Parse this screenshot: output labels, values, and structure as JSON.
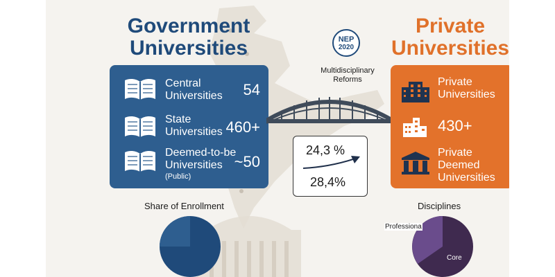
{
  "government": {
    "heading": "Government Universities",
    "color": "#1f4a7a",
    "panel_color": "#2e5e8f",
    "rows": [
      {
        "label": "Central Universities",
        "value": "54",
        "icon": "book-icon"
      },
      {
        "label": "State Universities",
        "value": "460+",
        "icon": "book-icon"
      },
      {
        "label": "Deemed-to-be Universities",
        "sublabel": "(Public)",
        "value": "~50",
        "icon": "book-icon"
      }
    ]
  },
  "private": {
    "heading": "Private Universities",
    "color": "#e0712a",
    "panel_color": "#e3722b",
    "rows": [
      {
        "label": "Private Universities",
        "icon": "office-building-icon"
      },
      {
        "value": "430+",
        "icon": "factory-building-icon"
      },
      {
        "label": "Private Deemed Universities",
        "icon": "institution-icon"
      }
    ]
  },
  "center": {
    "badge_line1": "NEP",
    "badge_line2": "2020",
    "reforms": "Multidisciplinary Reforms",
    "stat_top": "24,3 %",
    "stat_bottom": "28,4%"
  },
  "enrollment": {
    "title": "Share of Enrollment",
    "colors": [
      "#2e5e8f",
      "#1f4a7a"
    ]
  },
  "disciplines": {
    "title": "Disciplines",
    "label_professional": "Professiona",
    "label_core": "Core",
    "colors": [
      "#6a4c8c",
      "#3f2a4f"
    ]
  }
}
